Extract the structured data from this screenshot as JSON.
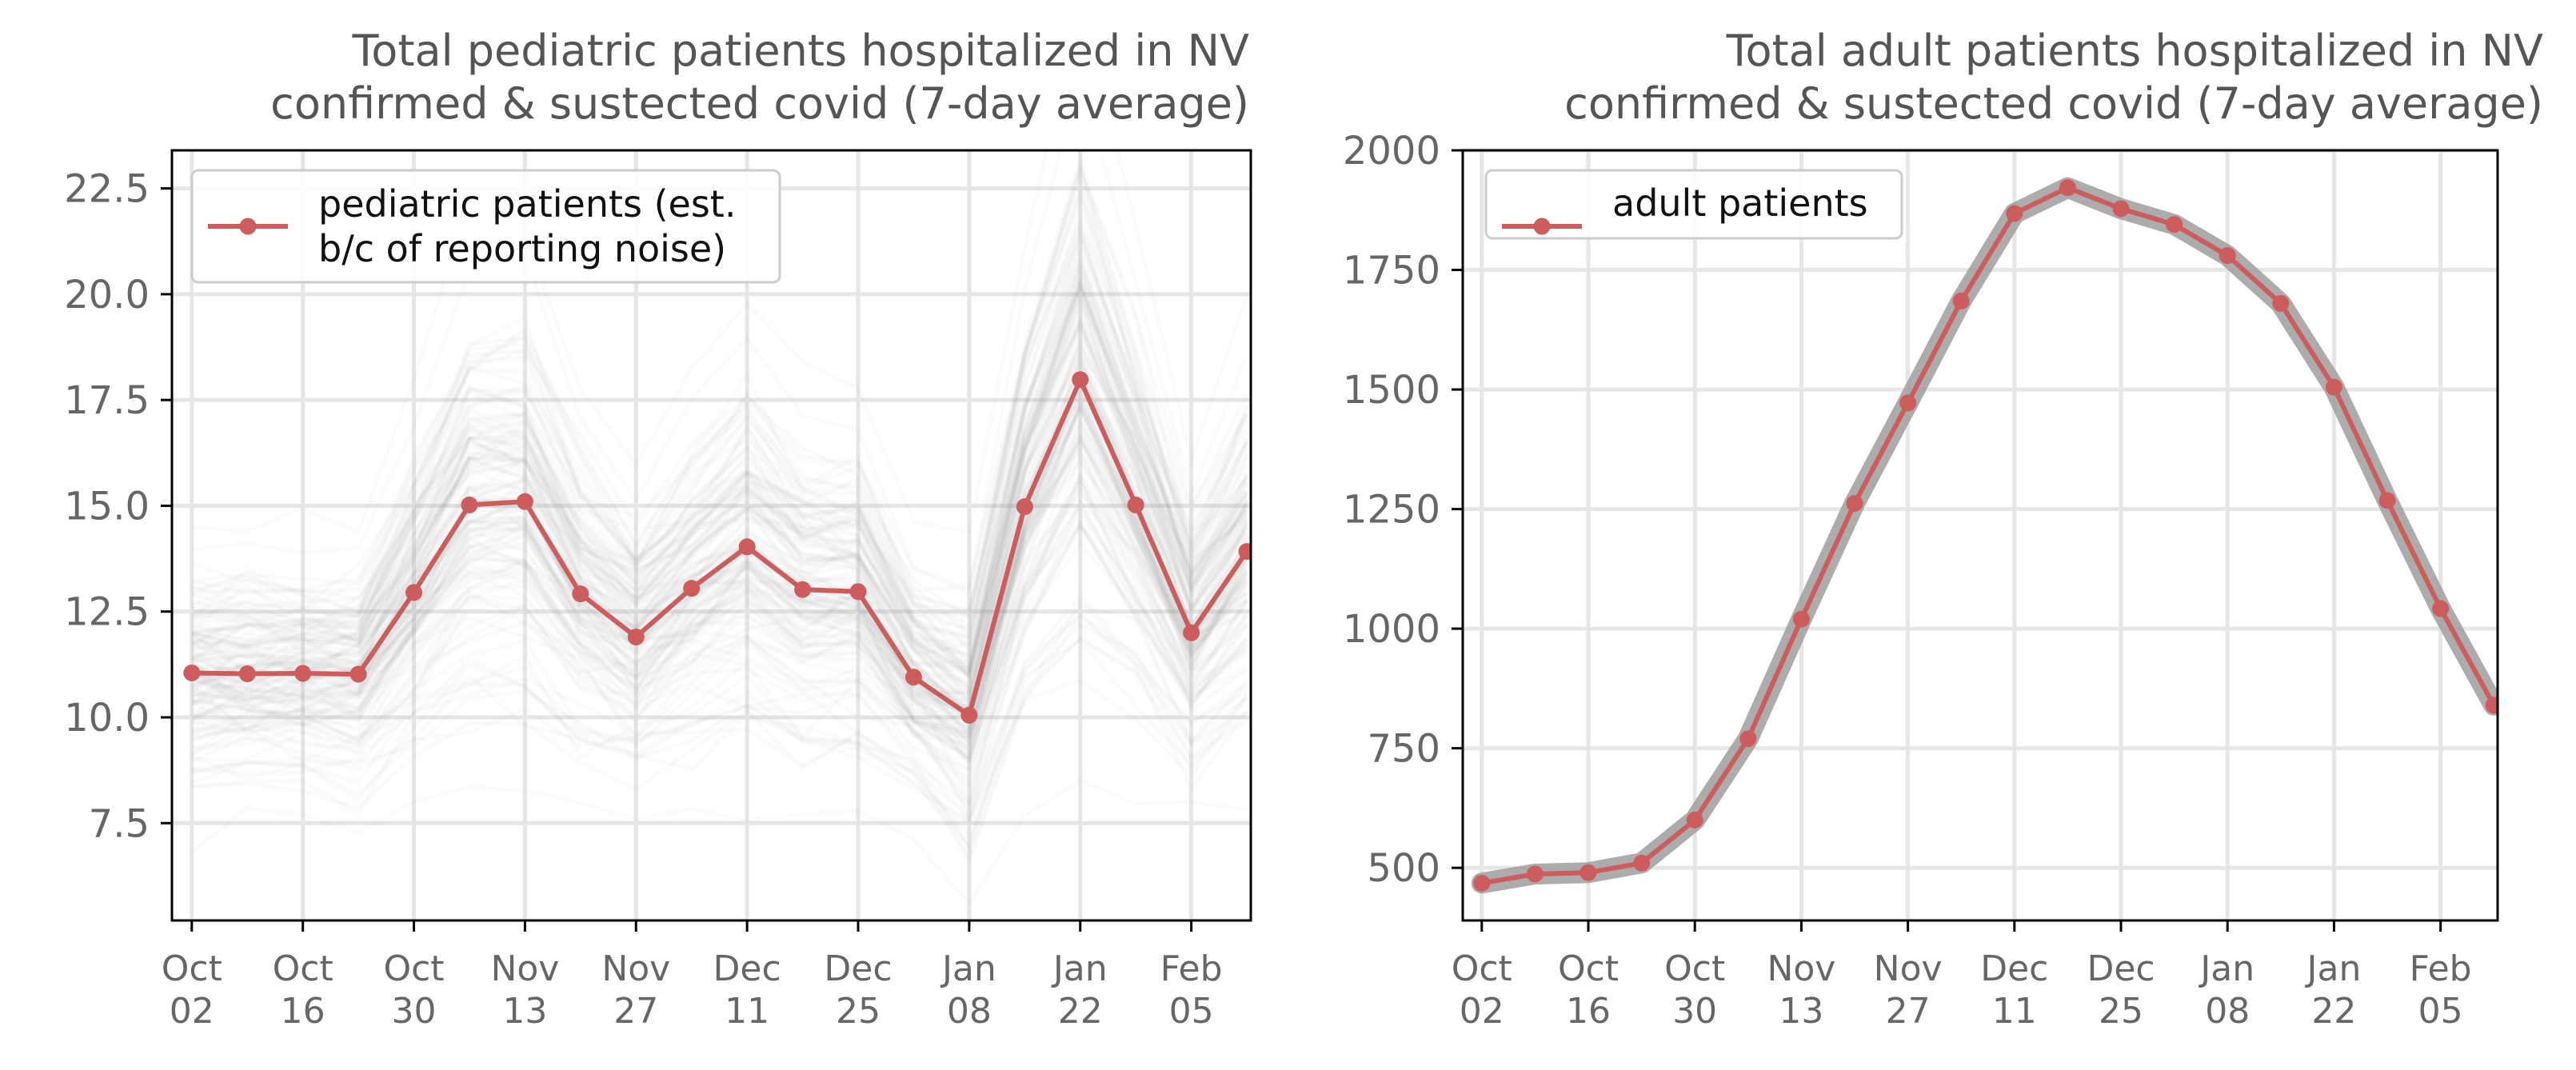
{
  "colors": {
    "series": "#cd5c5c",
    "band": "#9e9e9e",
    "grid": "#e6e6e6",
    "axis": "#000000",
    "text": "#555555"
  },
  "chart_data": [
    {
      "type": "line",
      "title_lines": [
        "Total pediatric patients hospitalized in NV",
        "confirmed & sustected covid (7-day average)"
      ],
      "xlabel": "",
      "ylabel": "",
      "x": [
        "2022-10-02",
        "2022-10-09",
        "2022-10-16",
        "2022-10-23",
        "2022-10-30",
        "2022-11-06",
        "2022-11-13",
        "2022-11-20",
        "2022-11-27",
        "2022-12-04",
        "2022-12-11",
        "2022-12-18",
        "2022-12-25",
        "2023-01-01",
        "2023-01-08",
        "2023-01-15",
        "2023-01-22",
        "2023-01-29",
        "2023-02-05",
        "2023-02-12"
      ],
      "x_tick_labels": [
        [
          "Oct",
          "02"
        ],
        [
          "Oct",
          "16"
        ],
        [
          "Oct",
          "30"
        ],
        [
          "Nov",
          "13"
        ],
        [
          "Nov",
          "27"
        ],
        [
          "Dec",
          "11"
        ],
        [
          "Dec",
          "25"
        ],
        [
          "Jan",
          "08"
        ],
        [
          "Jan",
          "22"
        ],
        [
          "Feb",
          "05"
        ]
      ],
      "y_ticks": [
        "7.5",
        "10.0",
        "12.5",
        "15.0",
        "17.5",
        "20.0",
        "22.5"
      ],
      "ylim": [
        5.2,
        23.4
      ],
      "grid": true,
      "legend_position": "top-left",
      "uncertainty_samples": "many faint gray simulated trajectories around the estimate",
      "series": [
        {
          "name": "pediatric patients (est. b/c of reporting noise)",
          "legend_lines": [
            "pediatric patients (est.",
            "b/c of reporting noise)"
          ],
          "values": [
            11.05,
            11.03,
            11.04,
            11.02,
            12.95,
            15.02,
            15.1,
            12.92,
            11.9,
            13.05,
            14.03,
            13.02,
            12.97,
            10.95,
            10.05,
            14.98,
            17.98,
            15.02,
            12.0,
            13.92
          ]
        }
      ]
    },
    {
      "type": "line",
      "title_lines": [
        "Total adult patients hospitalized in NV",
        "confirmed & sustected covid (7-day average)"
      ],
      "xlabel": "",
      "ylabel": "",
      "x": [
        "2022-10-02",
        "2022-10-09",
        "2022-10-16",
        "2022-10-23",
        "2022-10-30",
        "2022-11-06",
        "2022-11-13",
        "2022-11-20",
        "2022-11-27",
        "2022-12-04",
        "2022-12-11",
        "2022-12-18",
        "2022-12-25",
        "2023-01-01",
        "2023-01-08",
        "2023-01-15",
        "2023-01-22",
        "2023-01-29",
        "2023-02-05",
        "2023-02-12"
      ],
      "x_tick_labels": [
        [
          "Oct",
          "02"
        ],
        [
          "Oct",
          "16"
        ],
        [
          "Oct",
          "30"
        ],
        [
          "Nov",
          "13"
        ],
        [
          "Nov",
          "27"
        ],
        [
          "Dec",
          "11"
        ],
        [
          "Dec",
          "25"
        ],
        [
          "Jan",
          "08"
        ],
        [
          "Jan",
          "22"
        ],
        [
          "Feb",
          "05"
        ]
      ],
      "y_ticks": [
        "500",
        "750",
        "1000",
        "1250",
        "1500",
        "1750",
        "2000"
      ],
      "ylim": [
        390,
        2000
      ],
      "grid": true,
      "legend_position": "top-left",
      "uncertainty_samples": "narrow gray band of simulated trajectories around the estimate",
      "series": [
        {
          "name": "adult patients",
          "legend_lines": [
            "adult patients"
          ],
          "values": [
            468,
            487,
            490,
            510,
            600,
            770,
            1020,
            1262,
            1472,
            1685,
            1868,
            1922,
            1878,
            1845,
            1780,
            1680,
            1505,
            1268,
            1042,
            840
          ]
        }
      ]
    }
  ]
}
